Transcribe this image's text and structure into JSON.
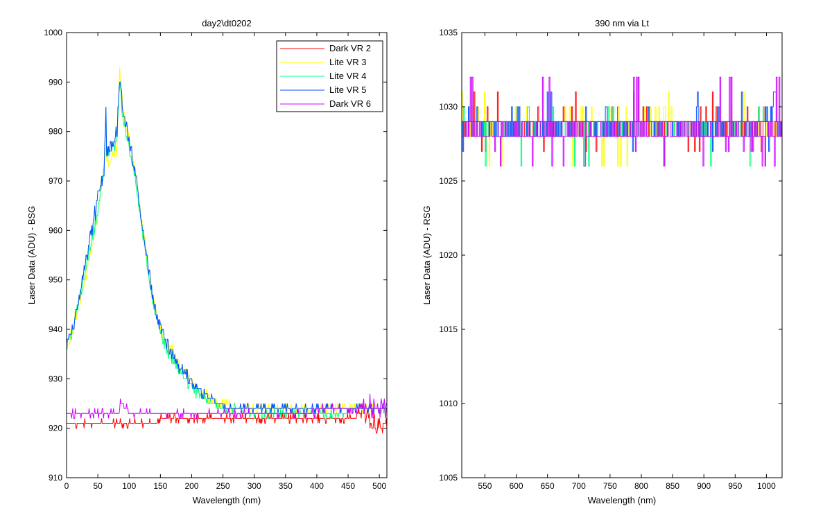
{
  "figure": {
    "background": "#ffffff"
  },
  "chart_data": [
    {
      "type": "line",
      "title": "day2\\dt0202",
      "xlabel": "Wavelength (nm)",
      "ylabel": "Laser Data (ADU) - BSG",
      "xlim": [
        0,
        512
      ],
      "ylim": [
        910,
        1000
      ],
      "xticks": [
        0,
        50,
        100,
        150,
        200,
        250,
        300,
        350,
        400,
        450,
        500
      ],
      "yticks": [
        910,
        920,
        930,
        940,
        950,
        960,
        970,
        980,
        990,
        1000
      ],
      "grid": false,
      "legend_position": "top-right",
      "series": [
        {
          "name": "Dark VR 2",
          "color": "#ff0000",
          "x": [
            0,
            50,
            100,
            150,
            200,
            250,
            300,
            350,
            400,
            450,
            480,
            490,
            500,
            512
          ],
          "y": [
            921,
            921,
            921,
            921.5,
            921.5,
            921.5,
            922,
            922,
            922,
            922,
            923,
            921,
            920,
            921
          ]
        },
        {
          "name": "Lite VR 3",
          "color": "#ffff00",
          "x": [
            0,
            10,
            20,
            30,
            40,
            50,
            55,
            60,
            63,
            64,
            70,
            80,
            85,
            90,
            100,
            110,
            120,
            130,
            140,
            150,
            160,
            170,
            180,
            190,
            200,
            210,
            220,
            230,
            240,
            250,
            260,
            280,
            300,
            350,
            400,
            450,
            500,
            512
          ],
          "y": [
            936,
            940,
            945,
            950,
            956,
            963,
            968,
            973,
            984,
            974,
            974,
            976,
            992,
            984,
            978,
            972,
            962,
            953,
            945,
            940,
            937,
            935,
            932.5,
            931,
            929.5,
            928,
            927,
            926,
            925.5,
            925,
            924.5,
            924,
            924,
            924,
            924,
            924,
            924,
            924
          ]
        },
        {
          "name": "Lite VR 4",
          "color": "#00ff80",
          "x": [
            0,
            10,
            20,
            30,
            40,
            50,
            55,
            60,
            63,
            64,
            70,
            80,
            85,
            90,
            100,
            110,
            120,
            130,
            140,
            150,
            160,
            170,
            180,
            190,
            200,
            210,
            220,
            230,
            240,
            250,
            260,
            280,
            300,
            350,
            400,
            450,
            500,
            512
          ],
          "y": [
            937,
            940,
            946,
            952,
            958,
            964,
            968,
            972,
            984,
            975,
            976,
            978,
            990,
            983,
            977,
            970,
            961,
            952,
            944,
            939,
            936,
            934,
            932,
            930,
            928.5,
            927,
            926,
            925,
            924.5,
            924,
            923.5,
            923.5,
            923,
            923,
            923,
            923.5,
            923.5,
            923.5
          ]
        },
        {
          "name": "Lite VR 5",
          "color": "#0050ff",
          "x": [
            0,
            10,
            20,
            30,
            40,
            50,
            55,
            60,
            63,
            64,
            70,
            80,
            85,
            90,
            100,
            110,
            120,
            130,
            140,
            150,
            160,
            170,
            180,
            190,
            200,
            210,
            220,
            230,
            240,
            250,
            260,
            280,
            300,
            350,
            400,
            450,
            500,
            512
          ],
          "y": [
            937,
            940,
            946,
            953,
            960,
            967,
            970,
            973,
            985,
            976,
            977,
            979,
            991,
            984,
            978,
            972,
            962,
            953,
            945,
            940,
            937,
            935,
            932,
            931,
            929.5,
            928,
            927,
            926,
            925,
            924.5,
            924,
            924,
            924,
            924,
            924,
            924,
            924,
            924
          ]
        },
        {
          "name": "Dark VR 6",
          "color": "#cc00ff",
          "x": [
            0,
            50,
            84,
            86,
            100,
            150,
            200,
            250,
            300,
            350,
            400,
            450,
            500,
            512
          ],
          "y": [
            923,
            923,
            923,
            925.5,
            923,
            923,
            923,
            923,
            923,
            923,
            923.5,
            923.5,
            924,
            924
          ]
        }
      ]
    },
    {
      "type": "line",
      "title": "390 nm via Lt",
      "xlabel": "Wavelength (nm)",
      "ylabel": "Laser Data (ADU) - RSG",
      "xlim": [
        513,
        1025
      ],
      "ylim": [
        1005,
        1035
      ],
      "xticks": [
        550,
        600,
        650,
        700,
        750,
        800,
        850,
        900,
        950,
        1000
      ],
      "yticks": [
        1005,
        1010,
        1015,
        1020,
        1025,
        1030,
        1035
      ],
      "grid": false,
      "levels": [
        1026,
        1027,
        1028,
        1029,
        1030,
        1031
      ],
      "series": [
        {
          "color": "#ff0000",
          "x": [
            513,
            1025
          ],
          "y_mean": 1028.8,
          "y_min": 1027,
          "y_max": 1031
        },
        {
          "color": "#ffff00",
          "x": [
            513,
            1025
          ],
          "y_mean": 1028.9,
          "y_min": 1026,
          "y_max": 1031
        },
        {
          "color": "#00ff80",
          "x": [
            513,
            1025
          ],
          "y_mean": 1028.7,
          "y_min": 1026,
          "y_max": 1030
        },
        {
          "color": "#0050ff",
          "x": [
            513,
            1025
          ],
          "y_mean": 1028.8,
          "y_min": 1027,
          "y_max": 1031
        },
        {
          "color": "#cc00ff",
          "x": [
            513,
            1025
          ],
          "y_mean": 1028.3,
          "y_min": 1026,
          "y_max": 1032
        }
      ]
    }
  ]
}
